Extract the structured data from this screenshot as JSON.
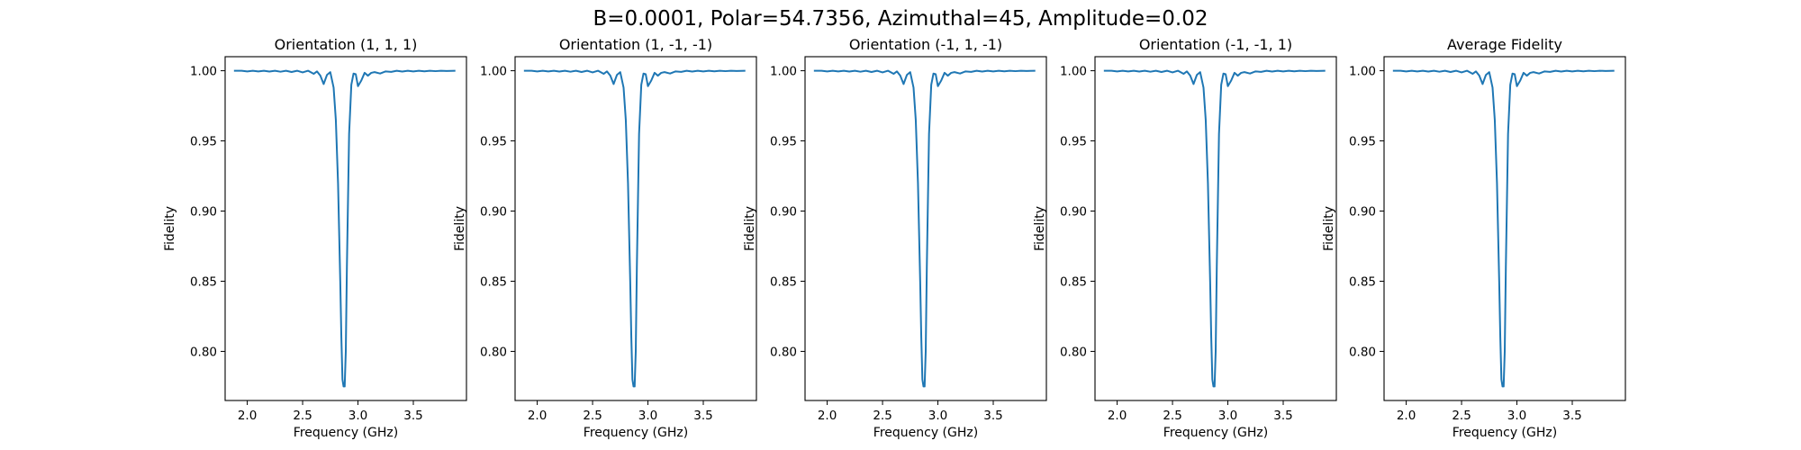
{
  "figure": {
    "suptitle": "B=0.0001, Polar=54.7356, Azimuthal=45, Amplitude=0.02"
  },
  "chart_data": [
    {
      "type": "line",
      "title": "Orientation (1, 1, 1)",
      "xlabel": "Frequency (GHz)",
      "ylabel": "Fidelity",
      "xlim": [
        1.8,
        3.98
      ],
      "ylim": [
        0.765,
        1.01
      ],
      "xticks": [
        "2.0",
        "2.5",
        "3.0",
        "3.5"
      ],
      "yticks": [
        "0.80",
        "0.85",
        "0.90",
        "0.95",
        "1.00"
      ],
      "color": "#1f77b4",
      "series": [
        {
          "x": [
            1.88,
            1.95,
            2.0,
            2.05,
            2.1,
            2.15,
            2.2,
            2.25,
            2.3,
            2.35,
            2.4,
            2.45,
            2.5,
            2.55,
            2.6,
            2.63,
            2.66,
            2.69,
            2.72,
            2.75,
            2.78,
            2.8,
            2.82,
            2.84,
            2.85,
            2.86,
            2.87,
            2.88,
            2.89,
            2.9,
            2.92,
            2.94,
            2.96,
            2.98,
            3.0,
            3.03,
            3.06,
            3.09,
            3.12,
            3.15,
            3.2,
            3.25,
            3.3,
            3.35,
            3.4,
            3.45,
            3.5,
            3.55,
            3.6,
            3.65,
            3.7,
            3.75,
            3.8,
            3.88
          ],
          "y": [
            1.0,
            1.0,
            0.9995,
            1.0,
            0.9995,
            1.0,
            0.9994,
            1.0,
            0.9993,
            1.0,
            0.9991,
            1.0,
            0.9988,
            1.0,
            0.9978,
            0.9995,
            0.9965,
            0.9905,
            0.997,
            0.999,
            0.988,
            0.965,
            0.92,
            0.85,
            0.81,
            0.78,
            0.775,
            0.775,
            0.8,
            0.86,
            0.955,
            0.99,
            0.998,
            0.9975,
            0.989,
            0.993,
            0.9985,
            0.9965,
            0.9985,
            0.999,
            0.998,
            0.9995,
            0.9992,
            1.0,
            0.9994,
            1.0,
            0.9995,
            1.0,
            0.9996,
            1.0,
            0.9997,
            1.0,
            0.9998,
            1.0
          ]
        }
      ]
    },
    {
      "type": "line",
      "title": "Orientation (1, -1, -1)",
      "xlabel": "Frequency (GHz)",
      "ylabel": "Fidelity",
      "xlim": [
        1.8,
        3.98
      ],
      "ylim": [
        0.765,
        1.01
      ],
      "xticks": [
        "2.0",
        "2.5",
        "3.0",
        "3.5"
      ],
      "yticks": [
        "0.80",
        "0.85",
        "0.90",
        "0.95",
        "1.00"
      ],
      "color": "#1f77b4",
      "series": [
        {
          "x": [
            1.88,
            1.95,
            2.0,
            2.05,
            2.1,
            2.15,
            2.2,
            2.25,
            2.3,
            2.35,
            2.4,
            2.45,
            2.5,
            2.55,
            2.6,
            2.63,
            2.66,
            2.69,
            2.72,
            2.75,
            2.78,
            2.8,
            2.82,
            2.84,
            2.85,
            2.86,
            2.87,
            2.88,
            2.89,
            2.9,
            2.92,
            2.94,
            2.96,
            2.98,
            3.0,
            3.03,
            3.06,
            3.09,
            3.12,
            3.15,
            3.2,
            3.25,
            3.3,
            3.35,
            3.4,
            3.45,
            3.5,
            3.55,
            3.6,
            3.65,
            3.7,
            3.75,
            3.8,
            3.88
          ],
          "y": [
            1.0,
            1.0,
            0.9995,
            1.0,
            0.9995,
            1.0,
            0.9994,
            1.0,
            0.9993,
            1.0,
            0.9991,
            1.0,
            0.9988,
            1.0,
            0.9978,
            0.9995,
            0.9965,
            0.9905,
            0.997,
            0.999,
            0.988,
            0.965,
            0.92,
            0.85,
            0.81,
            0.78,
            0.775,
            0.775,
            0.8,
            0.86,
            0.955,
            0.99,
            0.998,
            0.9975,
            0.989,
            0.993,
            0.9985,
            0.9965,
            0.9985,
            0.999,
            0.998,
            0.9995,
            0.9992,
            1.0,
            0.9994,
            1.0,
            0.9995,
            1.0,
            0.9996,
            1.0,
            0.9997,
            1.0,
            0.9998,
            1.0
          ]
        }
      ]
    },
    {
      "type": "line",
      "title": "Orientation (-1, 1, -1)",
      "xlabel": "Frequency (GHz)",
      "ylabel": "Fidelity",
      "xlim": [
        1.8,
        3.98
      ],
      "ylim": [
        0.765,
        1.01
      ],
      "xticks": [
        "2.0",
        "2.5",
        "3.0",
        "3.5"
      ],
      "yticks": [
        "0.80",
        "0.85",
        "0.90",
        "0.95",
        "1.00"
      ],
      "color": "#1f77b4",
      "series": [
        {
          "x": [
            1.88,
            1.95,
            2.0,
            2.05,
            2.1,
            2.15,
            2.2,
            2.25,
            2.3,
            2.35,
            2.4,
            2.45,
            2.5,
            2.55,
            2.6,
            2.63,
            2.66,
            2.69,
            2.72,
            2.75,
            2.78,
            2.8,
            2.82,
            2.84,
            2.85,
            2.86,
            2.87,
            2.88,
            2.89,
            2.9,
            2.92,
            2.94,
            2.96,
            2.98,
            3.0,
            3.03,
            3.06,
            3.09,
            3.12,
            3.15,
            3.2,
            3.25,
            3.3,
            3.35,
            3.4,
            3.45,
            3.5,
            3.55,
            3.6,
            3.65,
            3.7,
            3.75,
            3.8,
            3.88
          ],
          "y": [
            1.0,
            1.0,
            0.9995,
            1.0,
            0.9995,
            1.0,
            0.9994,
            1.0,
            0.9993,
            1.0,
            0.9991,
            1.0,
            0.9988,
            1.0,
            0.9978,
            0.9995,
            0.9965,
            0.9905,
            0.997,
            0.999,
            0.988,
            0.965,
            0.92,
            0.85,
            0.81,
            0.78,
            0.775,
            0.775,
            0.8,
            0.86,
            0.955,
            0.99,
            0.998,
            0.9975,
            0.989,
            0.993,
            0.9985,
            0.9965,
            0.9985,
            0.999,
            0.998,
            0.9995,
            0.9992,
            1.0,
            0.9994,
            1.0,
            0.9995,
            1.0,
            0.9996,
            1.0,
            0.9997,
            1.0,
            0.9998,
            1.0
          ]
        }
      ]
    },
    {
      "type": "line",
      "title": "Orientation (-1, -1, 1)",
      "xlabel": "Frequency (GHz)",
      "ylabel": "Fidelity",
      "xlim": [
        1.8,
        3.98
      ],
      "ylim": [
        0.765,
        1.01
      ],
      "xticks": [
        "2.0",
        "2.5",
        "3.0",
        "3.5"
      ],
      "yticks": [
        "0.80",
        "0.85",
        "0.90",
        "0.95",
        "1.00"
      ],
      "color": "#1f77b4",
      "series": [
        {
          "x": [
            1.88,
            1.95,
            2.0,
            2.05,
            2.1,
            2.15,
            2.2,
            2.25,
            2.3,
            2.35,
            2.4,
            2.45,
            2.5,
            2.55,
            2.6,
            2.63,
            2.66,
            2.69,
            2.72,
            2.75,
            2.78,
            2.8,
            2.82,
            2.84,
            2.85,
            2.86,
            2.87,
            2.88,
            2.89,
            2.9,
            2.92,
            2.94,
            2.96,
            2.98,
            3.0,
            3.03,
            3.06,
            3.09,
            3.12,
            3.15,
            3.2,
            3.25,
            3.3,
            3.35,
            3.4,
            3.45,
            3.5,
            3.55,
            3.6,
            3.65,
            3.7,
            3.75,
            3.8,
            3.88
          ],
          "y": [
            1.0,
            1.0,
            0.9995,
            1.0,
            0.9995,
            1.0,
            0.9994,
            1.0,
            0.9993,
            1.0,
            0.9991,
            1.0,
            0.9988,
            1.0,
            0.9978,
            0.9995,
            0.9965,
            0.9905,
            0.997,
            0.999,
            0.988,
            0.965,
            0.92,
            0.85,
            0.81,
            0.78,
            0.775,
            0.775,
            0.8,
            0.86,
            0.955,
            0.99,
            0.998,
            0.9975,
            0.989,
            0.993,
            0.9985,
            0.9965,
            0.9985,
            0.999,
            0.998,
            0.9995,
            0.9992,
            1.0,
            0.9994,
            1.0,
            0.9995,
            1.0,
            0.9996,
            1.0,
            0.9997,
            1.0,
            0.9998,
            1.0
          ]
        }
      ]
    },
    {
      "type": "line",
      "title": "Average Fidelity",
      "xlabel": "Frequency (GHz)",
      "ylabel": "Fidelity",
      "xlim": [
        1.8,
        3.98
      ],
      "ylim": [
        0.765,
        1.01
      ],
      "xticks": [
        "2.0",
        "2.5",
        "3.0",
        "3.5"
      ],
      "yticks": [
        "0.80",
        "0.85",
        "0.90",
        "0.95",
        "1.00"
      ],
      "color": "#1f77b4",
      "series": [
        {
          "x": [
            1.88,
            1.95,
            2.0,
            2.05,
            2.1,
            2.15,
            2.2,
            2.25,
            2.3,
            2.35,
            2.4,
            2.45,
            2.5,
            2.55,
            2.6,
            2.63,
            2.66,
            2.69,
            2.72,
            2.75,
            2.78,
            2.8,
            2.82,
            2.84,
            2.85,
            2.86,
            2.87,
            2.88,
            2.89,
            2.9,
            2.92,
            2.94,
            2.96,
            2.98,
            3.0,
            3.03,
            3.06,
            3.09,
            3.12,
            3.15,
            3.2,
            3.25,
            3.3,
            3.35,
            3.4,
            3.45,
            3.5,
            3.55,
            3.6,
            3.65,
            3.7,
            3.75,
            3.8,
            3.88
          ],
          "y": [
            1.0,
            1.0,
            0.9995,
            1.0,
            0.9995,
            1.0,
            0.9994,
            1.0,
            0.9993,
            1.0,
            0.9991,
            1.0,
            0.9988,
            1.0,
            0.9978,
            0.9995,
            0.9965,
            0.9905,
            0.997,
            0.999,
            0.988,
            0.965,
            0.92,
            0.85,
            0.81,
            0.78,
            0.775,
            0.775,
            0.8,
            0.86,
            0.955,
            0.99,
            0.998,
            0.9975,
            0.989,
            0.993,
            0.9985,
            0.9965,
            0.9985,
            0.999,
            0.998,
            0.9995,
            0.9992,
            1.0,
            0.9994,
            1.0,
            0.9995,
            1.0,
            0.9996,
            1.0,
            0.9997,
            1.0,
            0.9998,
            1.0
          ]
        }
      ]
    }
  ]
}
